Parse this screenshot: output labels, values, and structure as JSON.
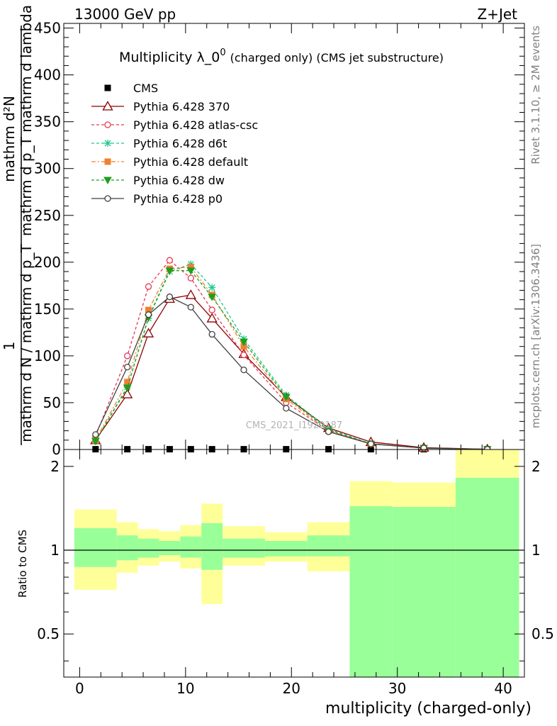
{
  "header": {
    "left": "13000 GeV pp",
    "right": "Z+Jet"
  },
  "side_labels": {
    "rivet": "Rivet 3.1.10, ≥ 2M events",
    "mcplots": "mcplots.cern.ch [arXiv:1306.3436]"
  },
  "watermark": "CMS_2021_I1920187",
  "chart_data": [
    {
      "type": "line",
      "title": "Multiplicity λ_0⁰ (charged only) (CMS jet substructure)",
      "title_main": "Multiplicity λ_0",
      "title_sup": "0",
      "title_tail": "(charged only) (CMS jet substructure)",
      "ylabel_numerator": "mathrm d²N",
      "ylabel_denominator": "mathrm d p_T mathrm d lambda",
      "ylabel_prefix": "1",
      "ylabel_prefix_den": "mathrm d N / mathrm d p_T",
      "xlim": [
        -1.5,
        42
      ],
      "ylim": [
        0,
        455
      ],
      "xticks": [
        0,
        10,
        20,
        30,
        40
      ],
      "yticks": [
        0,
        50,
        100,
        150,
        200,
        250,
        300,
        350,
        400,
        450
      ],
      "legend_position": "top-left",
      "series": [
        {
          "name": "CMS",
          "color": "#000000",
          "marker": "square",
          "dash": "none",
          "x": [
            1.5,
            4.5,
            6.5,
            8.5,
            10.5,
            12.5,
            15.5,
            19.5,
            23.5,
            27.5,
            32.5,
            38.5
          ],
          "y": [
            0.3,
            0.3,
            0.3,
            0.3,
            0.3,
            0.3,
            0.3,
            0.3,
            0.3,
            0.3,
            0.3,
            0.3
          ]
        },
        {
          "name": "Pythia 6.428 370",
          "color": "#8b0000",
          "marker": "triangle",
          "dash": "none",
          "x": [
            1.5,
            4.5,
            6.5,
            8.5,
            10.5,
            12.5,
            15.5,
            19.5,
            23.5,
            27.5,
            32.5,
            38.5
          ],
          "y": [
            10,
            59,
            124,
            161,
            165,
            140,
            102,
            56,
            23,
            8,
            2,
            0.3
          ]
        },
        {
          "name": "Pythia 6.428 atlas-csc",
          "color": "#e8374f",
          "marker": "circle",
          "dash": "4,3",
          "x": [
            1.5,
            4.5,
            6.5,
            8.5,
            10.5,
            12.5,
            15.5,
            19.5,
            23.5,
            27.5,
            32.5,
            38.5
          ],
          "y": [
            14,
            100,
            174,
            202,
            183,
            149,
            101,
            50,
            20,
            6,
            1.5,
            0.2
          ]
        },
        {
          "name": "Pythia 6.428 d6t",
          "color": "#1fc98a",
          "marker": "star",
          "dash": "4,3",
          "x": [
            1.5,
            4.5,
            6.5,
            8.5,
            10.5,
            12.5,
            15.5,
            19.5,
            23.5,
            27.5,
            32.5,
            38.5
          ],
          "y": [
            9,
            67,
            140,
            190,
            198,
            173,
            118,
            58,
            22,
            6,
            1.5,
            0.2
          ]
        },
        {
          "name": "Pythia 6.428 default",
          "color": "#f08030",
          "marker": "square",
          "dash": "6,3,2,3",
          "x": [
            1.5,
            4.5,
            6.5,
            8.5,
            10.5,
            12.5,
            15.5,
            19.5,
            23.5,
            27.5,
            32.5,
            38.5
          ],
          "y": [
            10,
            72,
            149,
            193,
            195,
            165,
            110,
            54,
            20,
            6,
            1.5,
            0.2
          ]
        },
        {
          "name": "Pythia 6.428 dw",
          "color": "#1f9e1f",
          "marker": "triangle-down",
          "dash": "4,3",
          "x": [
            1.5,
            4.5,
            6.5,
            8.5,
            10.5,
            12.5,
            15.5,
            19.5,
            23.5,
            27.5,
            32.5,
            38.5
          ],
          "y": [
            9,
            66,
            141,
            191,
            191,
            163,
            115,
            56,
            21,
            6,
            1.5,
            0.2
          ]
        },
        {
          "name": "Pythia 6.428 p0",
          "color": "#404040",
          "marker": "circle",
          "dash": "none",
          "x": [
            1.5,
            4.5,
            6.5,
            8.5,
            10.5,
            12.5,
            15.5,
            19.5,
            23.5,
            27.5,
            32.5,
            38.5
          ],
          "y": [
            16,
            88,
            144,
            163,
            152,
            123,
            85,
            44,
            19,
            6,
            1.5,
            0.2
          ]
        }
      ]
    },
    {
      "type": "area",
      "ylabel": "Ratio to CMS",
      "xlabel": "multiplicity (charged-only)",
      "xlim": [
        -1.5,
        42
      ],
      "ylim": [
        0.35,
        2.3
      ],
      "xticks": [
        0,
        10,
        20,
        30,
        40
      ],
      "xtick_labels": [
        "0",
        "10",
        "20",
        "30",
        "40"
      ],
      "yticks": [
        0.5,
        1,
        2
      ],
      "ytick_labels": [
        "0.5",
        "1",
        "2"
      ],
      "reference_line": 1,
      "bands": [
        {
          "xlo": -0.5,
          "xhi": 3.5,
          "stat_lo": 0.87,
          "stat_hi": 1.2,
          "tot_lo": 0.72,
          "tot_hi": 1.4
        },
        {
          "xlo": 3.5,
          "xhi": 5.5,
          "stat_lo": 0.92,
          "stat_hi": 1.13,
          "tot_lo": 0.83,
          "tot_hi": 1.26
        },
        {
          "xlo": 5.5,
          "xhi": 7.5,
          "stat_lo": 0.94,
          "stat_hi": 1.1,
          "tot_lo": 0.88,
          "tot_hi": 1.19
        },
        {
          "xlo": 7.5,
          "xhi": 9.5,
          "stat_lo": 0.96,
          "stat_hi": 1.08,
          "tot_lo": 0.91,
          "tot_hi": 1.17
        },
        {
          "xlo": 9.5,
          "xhi": 11.5,
          "stat_lo": 0.94,
          "stat_hi": 1.12,
          "tot_lo": 0.86,
          "tot_hi": 1.23
        },
        {
          "xlo": 11.5,
          "xhi": 13.5,
          "stat_lo": 0.85,
          "stat_hi": 1.25,
          "tot_lo": 0.64,
          "tot_hi": 1.47
        },
        {
          "xlo": 13.5,
          "xhi": 17.5,
          "stat_lo": 0.94,
          "stat_hi": 1.1,
          "tot_lo": 0.88,
          "tot_hi": 1.22
        },
        {
          "xlo": 17.5,
          "xhi": 21.5,
          "stat_lo": 0.95,
          "stat_hi": 1.08,
          "tot_lo": 0.91,
          "tot_hi": 1.16
        },
        {
          "xlo": 21.5,
          "xhi": 25.5,
          "stat_lo": 0.95,
          "stat_hi": 1.13,
          "tot_lo": 0.84,
          "tot_hi": 1.26
        },
        {
          "xlo": 25.5,
          "xhi": 29.5,
          "stat_lo": 0.35,
          "stat_hi": 1.44,
          "tot_lo": 0.69,
          "tot_hi": 1.77
        },
        {
          "xlo": 29.5,
          "xhi": 35.5,
          "stat_lo": 0.35,
          "stat_hi": 1.43,
          "tot_lo": 0.7,
          "tot_hi": 1.75
        },
        {
          "xlo": 35.5,
          "xhi": 41.5,
          "stat_lo": 0.35,
          "stat_hi": 1.82,
          "tot_lo": 0.35,
          "tot_hi": 2.3
        }
      ],
      "colors": {
        "stat": "#99ff99",
        "total": "#ffff99",
        "line": "#000000"
      }
    }
  ]
}
